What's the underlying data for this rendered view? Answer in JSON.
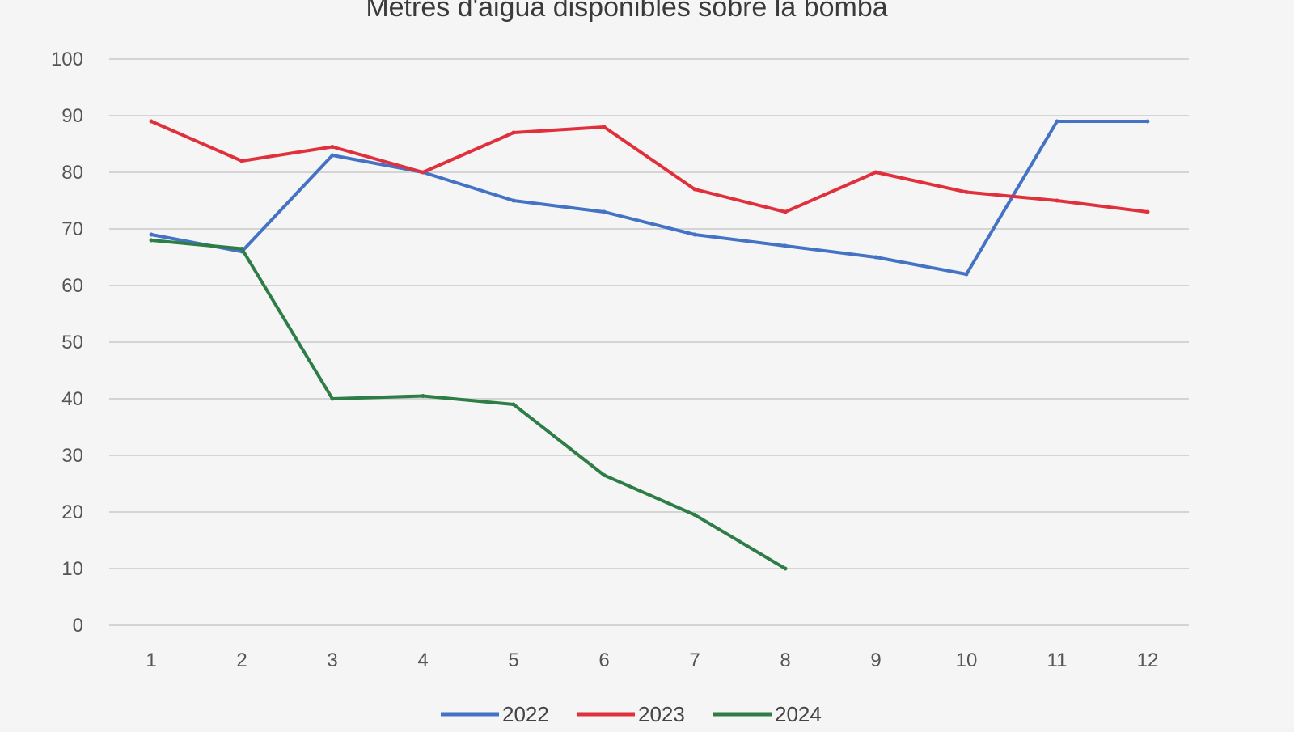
{
  "chart_data": {
    "type": "line",
    "title": "Metres d'aigua disponibles sobre la bomba",
    "xlabel": "",
    "ylabel": "",
    "categories": [
      "1",
      "2",
      "3",
      "4",
      "5",
      "6",
      "7",
      "8",
      "9",
      "10",
      "11",
      "12"
    ],
    "ylim": [
      0,
      100
    ],
    "yticks": [
      0,
      10,
      20,
      30,
      40,
      50,
      60,
      70,
      80,
      90,
      100
    ],
    "grid": true,
    "legend_position": "bottom",
    "series": [
      {
        "name": "2022",
        "color": "#4472c4",
        "values": [
          69,
          66,
          83,
          80,
          75,
          73,
          69,
          67,
          65,
          62,
          89,
          89
        ]
      },
      {
        "name": "2023",
        "color": "#e0303c",
        "values": [
          89,
          82,
          84.5,
          80,
          87,
          88,
          77,
          73,
          80,
          76.5,
          75,
          73
        ]
      },
      {
        "name": "2024",
        "color": "#2e7d46",
        "values": [
          68,
          66.5,
          40,
          40.5,
          39,
          26.5,
          19.5,
          10,
          null,
          null,
          null,
          null
        ]
      }
    ]
  }
}
